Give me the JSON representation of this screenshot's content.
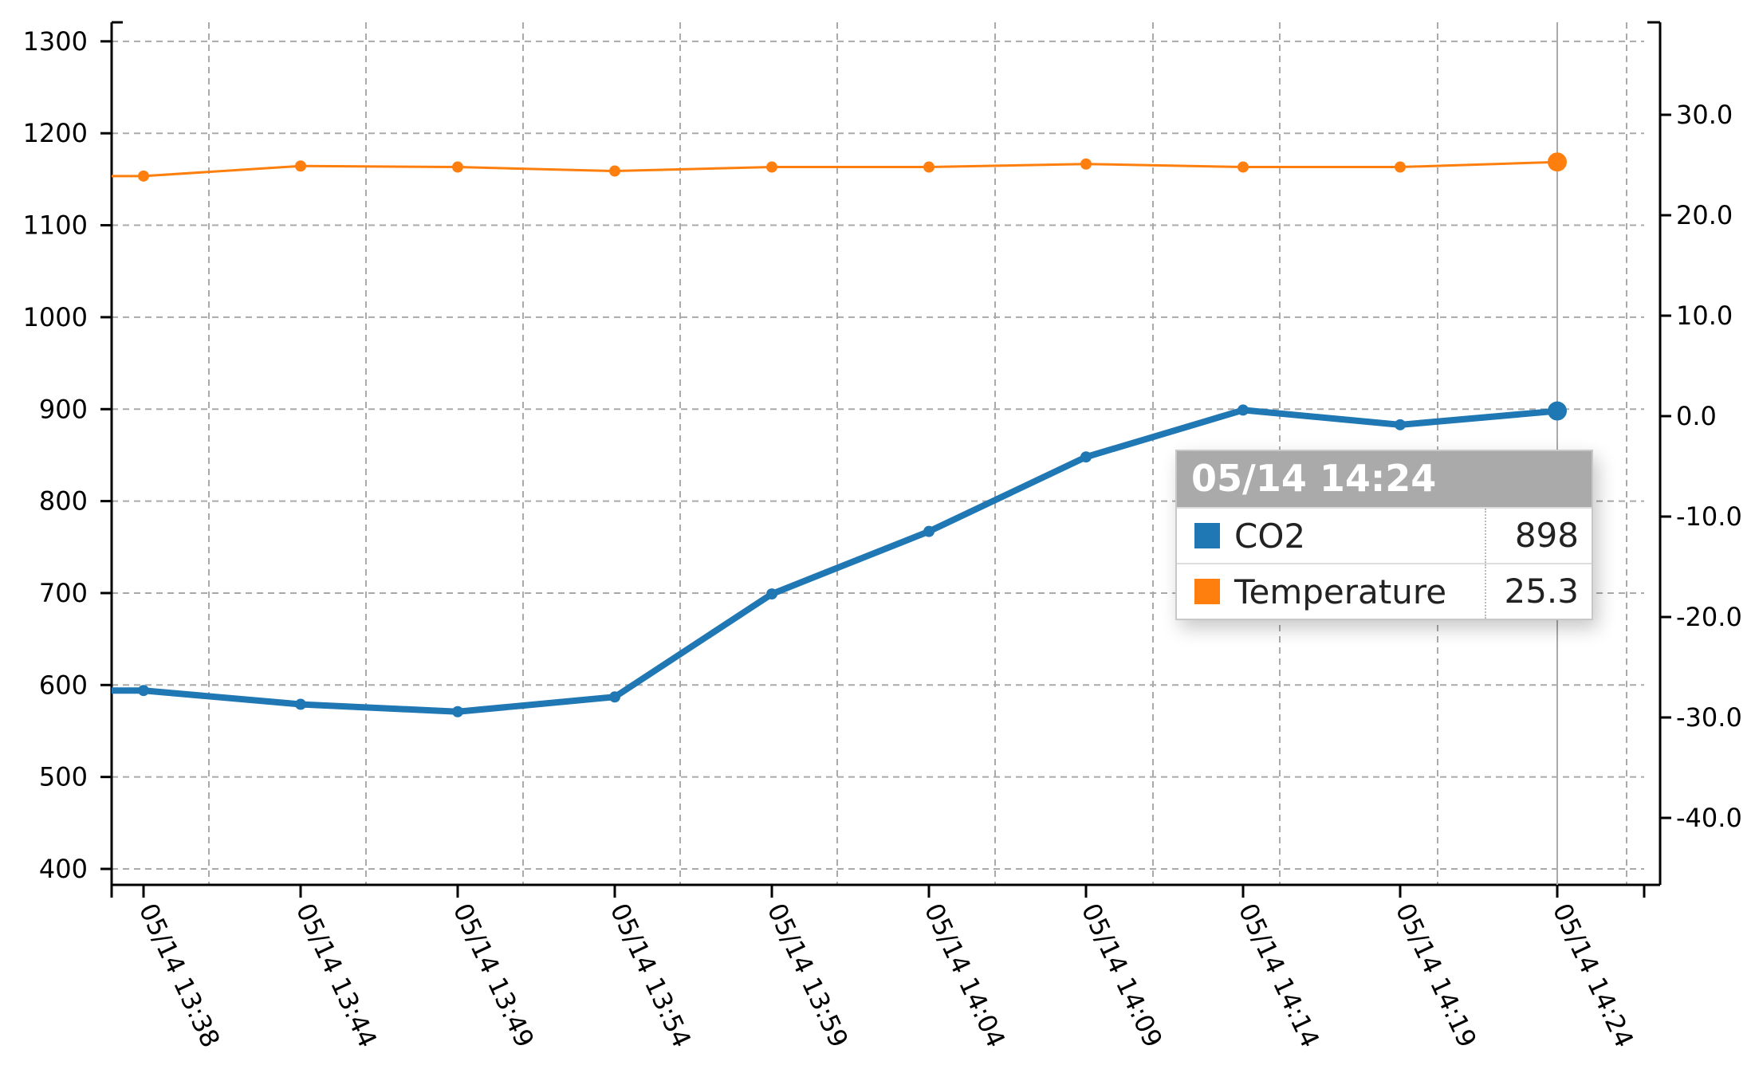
{
  "chart_data": {
    "type": "line",
    "categories": [
      "05/14 13:38",
      "05/14 13:44",
      "05/14 13:49",
      "05/14 13:54",
      "05/14 13:59",
      "05/14 14:04",
      "05/14 14:09",
      "05/14 14:14",
      "05/14 14:19",
      "05/14 14:24"
    ],
    "series": [
      {
        "name": "CO2",
        "axis": "left",
        "color": "#1f77b4",
        "values": [
          594,
          579,
          571,
          587,
          699,
          767,
          848,
          899,
          883,
          898
        ]
      },
      {
        "name": "Temperature",
        "axis": "right",
        "color": "#ff7f0e",
        "values": [
          23.9,
          24.9,
          24.8,
          24.4,
          24.8,
          24.8,
          25.1,
          24.8,
          24.8,
          25.3
        ]
      }
    ],
    "y_left": {
      "ylim": [
        390,
        1320
      ],
      "ticks": [
        "400",
        "500",
        "600",
        "700",
        "800",
        "900",
        "1000",
        "1100",
        "1200",
        "1300"
      ]
    },
    "y_right": {
      "ylim": [
        -47,
        39
      ],
      "ticks": [
        "-40.0",
        "-30.0",
        "-20.0",
        "-10.0",
        "0.0",
        "10.0",
        "20.0",
        "30.0"
      ]
    },
    "grid": true,
    "highlighted_index": 9,
    "tooltip": {
      "title": "05/14 14:24",
      "rows": [
        {
          "name": "CO2",
          "value": "898",
          "color": "#1f77b4"
        },
        {
          "name": "Temperature",
          "value": "25.3",
          "color": "#ff7f0e"
        }
      ]
    }
  }
}
